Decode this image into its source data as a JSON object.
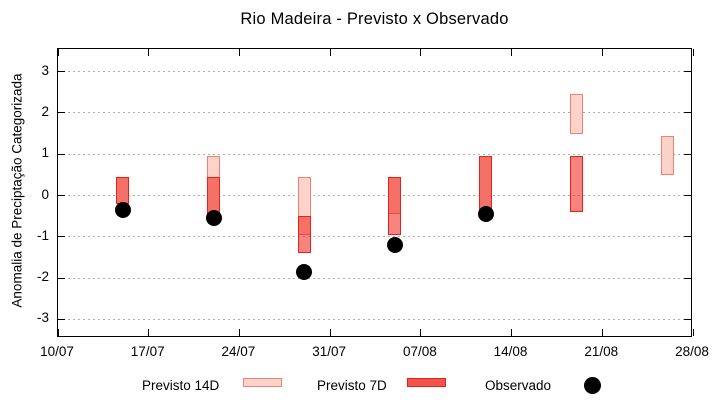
{
  "title": "Rio Madeira - Previsto x Observado",
  "ylabel": "Anomalia de Preciptação Categorizada",
  "legend": [
    {
      "label": "Previsto 14D",
      "type": "box-14d"
    },
    {
      "label": "Previsto 7D",
      "type": "box-7d"
    },
    {
      "label": "Observado",
      "type": "dot"
    }
  ],
  "colors": {
    "previsto14_fill": "#fbd3cb",
    "previsto14_border": "#f08272",
    "previsto7_fill": "rgba(238,32,21,0.55)",
    "previsto7_border": "#ee1f17",
    "legend7_fill": "#f2544c",
    "observado": "#000000",
    "grid": "#b0b0b0",
    "axis": "#000000"
  },
  "chart_data": {
    "type": "bar",
    "subtype": "forecast-range-bars-with-observed-points",
    "xlabel": "",
    "ylabel": "Anomalia de Preciptação Categorizada",
    "xticks": [
      {
        "day": 0,
        "label": "10/07"
      },
      {
        "day": 7,
        "label": "17/07"
      },
      {
        "day": 14,
        "label": "24/07"
      },
      {
        "day": 21,
        "label": "31/07"
      },
      {
        "day": 28,
        "label": "07/08"
      },
      {
        "day": 35,
        "label": "14/08"
      },
      {
        "day": 42,
        "label": "21/08"
      },
      {
        "day": 49,
        "label": "28/08"
      }
    ],
    "yticks": [
      -3,
      -2,
      -1,
      0,
      1,
      2,
      3
    ],
    "xlim_days": [
      0,
      49
    ],
    "ylim": [
      -3.45,
      3.55
    ],
    "grid": "horizontal-dashed",
    "legend_position": "below",
    "groups": [
      {
        "date": "15/07",
        "day": 5,
        "previsto14": [
          -0.2,
          0.45
        ],
        "previsto7": [
          -0.2,
          0.45
        ],
        "observado": -0.35
      },
      {
        "date": "22/07",
        "day": 12,
        "previsto14": [
          -0.45,
          0.95
        ],
        "previsto7": [
          -0.45,
          0.45
        ],
        "observado": -0.55
      },
      {
        "date": "29/07",
        "day": 19,
        "previsto14": [
          -0.95,
          0.45
        ],
        "previsto7": [
          -1.4,
          -0.5
        ],
        "observado": -1.85
      },
      {
        "date": "05/08",
        "day": 26,
        "previsto14": [
          -0.45,
          0.45
        ],
        "previsto7": [
          -0.95,
          0.45
        ],
        "observado": -1.2
      },
      {
        "date": "12/08",
        "day": 33,
        "previsto14": [
          -0.4,
          0.95
        ],
        "previsto7": [
          -0.4,
          0.95
        ],
        "observado": -0.45
      },
      {
        "date": "19/08",
        "day": 40,
        "previsto14": [
          1.5,
          2.45
        ],
        "previsto7": [
          -0.4,
          0.95
        ],
        "observado": null
      },
      {
        "date": "26/08",
        "day": 47,
        "previsto14": [
          0.5,
          1.45
        ],
        "previsto7": null,
        "observado": null
      }
    ]
  }
}
